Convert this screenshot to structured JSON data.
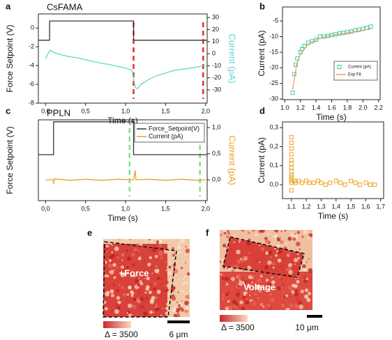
{
  "chart_data": [
    {
      "panel": "a",
      "type": "line",
      "title": "CsFAMA",
      "xlabel": "Time (s)",
      "ylabel": "Force Setpoint (V)",
      "y2label": "Current (pA)",
      "xlim": [
        -0.09,
        2.02
      ],
      "xticks": [
        {
          "value": 0,
          "label": "0,0"
        },
        {
          "value": 0.5,
          "label": "0,5"
        },
        {
          "value": 1,
          "label": "1,0"
        },
        {
          "value": 1.5,
          "label": "1,5"
        },
        {
          "value": 2,
          "label": "2,0"
        }
      ],
      "ylim": [
        -8,
        1.5
      ],
      "yticks": [
        0,
        -2,
        -4,
        -6,
        -8
      ],
      "y2lim": [
        -41,
        33
      ],
      "y2ticks": [
        30,
        20,
        10,
        0,
        -10,
        -20,
        -30
      ],
      "series": [
        {
          "type": "line",
          "color": "#333333",
          "x": [
            -0.09,
            0.05,
            0.05,
            1.1,
            1.1,
            2.02
          ],
          "values": [
            -1.3,
            -1.3,
            0.75,
            0.75,
            -1.3,
            -1.3
          ]
        },
        {
          "type": "line",
          "color": "#5fd6c8",
          "axis": "y2",
          "x": [
            0,
            0.03,
            0.06,
            0.1,
            0.2,
            0.3,
            0.4,
            0.5,
            0.6,
            0.7,
            0.8,
            0.9,
            1.0,
            1.05,
            1.08,
            1.1,
            1.12,
            1.15,
            1.2,
            1.3,
            1.4,
            1.5,
            1.6,
            1.7,
            1.8,
            1.9,
            2.0
          ],
          "values": [
            -4,
            0,
            3,
            1,
            -1,
            -2.5,
            -3.5,
            -5,
            -6.5,
            -8,
            -9,
            -10.5,
            -12,
            -13,
            -14,
            -20,
            -28,
            -29,
            -25,
            -21,
            -18,
            -16,
            -14,
            -13,
            -12,
            -11,
            -10
          ]
        }
      ],
      "vlines": [
        {
          "x": 1.1,
          "color": "#e0302a"
        },
        {
          "x": 1.97,
          "color": "#e0302a"
        }
      ]
    },
    {
      "panel": "b",
      "type": "scatter",
      "xlabel": "Time (s)",
      "ylabel": "Current (pA)",
      "xlim": [
        0.97,
        2.22
      ],
      "xticks": [
        {
          "value": 1,
          "label": "1.0"
        },
        1.2,
        1.4,
        1.6,
        1.8,
        {
          "value": 2,
          "label": "2.0"
        },
        2.2
      ],
      "ylim": [
        -30.2,
        -0.5
      ],
      "yticks": [
        -5,
        -10,
        -15,
        -20,
        -25,
        -30
      ],
      "legend": "lower right",
      "series": [
        {
          "name": "Current (pA)",
          "type": "scatter",
          "color": "#3cc9a0",
          "x": [
            1.1,
            1.12,
            1.14,
            1.16,
            1.2,
            1.22,
            1.25,
            1.3,
            1.35,
            1.4,
            1.45,
            1.5,
            1.55,
            1.6,
            1.65,
            1.7,
            1.75,
            1.8,
            1.85,
            1.9,
            1.95,
            2.0,
            2.05,
            2.1
          ],
          "values": [
            -28,
            -22,
            -19,
            -17,
            -15,
            -14,
            -13,
            -12,
            -11.5,
            -11,
            -10,
            -10,
            -9.8,
            -9.5,
            -9.3,
            -9,
            -8.8,
            -8.6,
            -8.4,
            -8,
            -7.8,
            -7.5,
            -7.2,
            -6.8
          ]
        },
        {
          "name": "Exp Fit",
          "type": "line",
          "color": "#f0a060",
          "x": [
            1.1,
            1.15,
            1.2,
            1.3,
            1.4,
            1.5,
            1.6,
            1.8,
            2.0,
            2.1
          ],
          "values": [
            -27,
            -19,
            -15.5,
            -12.5,
            -11,
            -10.2,
            -9.6,
            -8.8,
            -7.9,
            -7.5
          ]
        }
      ]
    },
    {
      "panel": "c",
      "type": "line",
      "title": "PPLN",
      "xlabel": "Time (s)",
      "ylabel": "Force Setpoint (V)",
      "y2label": "Current (pA)",
      "xlim": [
        -0.09,
        2.02
      ],
      "xticks": [
        {
          "value": 0,
          "label": "0,0"
        },
        {
          "value": 0.5,
          "label": "0,5"
        },
        {
          "value": 1,
          "label": "1,0"
        },
        {
          "value": 1.5,
          "label": "1,5"
        },
        {
          "value": 2,
          "label": "2,0"
        }
      ],
      "ylim": [
        -7,
        5.3
      ],
      "yticks": [],
      "y2lim": [
        -0.4,
        1.15
      ],
      "y2ticks": [
        {
          "value": 1,
          "label": "1,0"
        },
        {
          "value": 0.5,
          "label": "0,5"
        },
        {
          "value": 0,
          "label": "0,0"
        }
      ],
      "legend": "upper right",
      "series": [
        {
          "name": "Force_Setpoint(V)",
          "type": "line",
          "color": "#333333",
          "x": [
            -0.09,
            0.1,
            0.1,
            1.1,
            1.1,
            2.02
          ],
          "values": [
            0,
            0,
            5,
            5,
            0,
            0
          ]
        },
        {
          "name": "Current (pA)",
          "type": "line",
          "color": "#f0a020",
          "axis": "y2",
          "x": [
            0,
            0.1,
            0.1,
            0.11,
            0.3,
            0.5,
            0.7,
            0.9,
            1.1,
            1.12,
            1.13,
            1.3,
            1.5,
            1.7,
            1.9,
            2.0
          ],
          "values": [
            0,
            0,
            -0.08,
            0.02,
            -0.01,
            0.01,
            -0.01,
            0.01,
            0,
            0.18,
            0,
            0.01,
            -0.01,
            0.01,
            -0.01,
            0
          ]
        }
      ],
      "vlines": [
        {
          "x": 1.05,
          "color": "#7fe08a"
        },
        {
          "x": 1.93,
          "color": "#7fe08a"
        }
      ]
    },
    {
      "panel": "d",
      "type": "scatter",
      "xlabel": "Time (s)",
      "ylabel": "Current (pA)",
      "xlim": [
        1.04,
        1.72
      ],
      "xticks": [
        {
          "value": 1.1,
          "label": "1,1"
        },
        {
          "value": 1.2,
          "label": "1,2"
        },
        {
          "value": 1.3,
          "label": "1,3"
        },
        {
          "value": 1.4,
          "label": "1,4"
        },
        {
          "value": 1.5,
          "label": "1,5"
        },
        {
          "value": 1.6,
          "label": "1,6"
        },
        {
          "value": 1.7,
          "label": "1,7"
        }
      ],
      "ylim": [
        -0.073,
        0.33
      ],
      "yticks": [
        {
          "value": 0,
          "label": "0,0"
        },
        {
          "value": 0.1,
          "label": "0,1"
        },
        {
          "value": 0.2,
          "label": "0,2"
        },
        {
          "value": 0.3,
          "label": "0,3"
        }
      ],
      "series": [
        {
          "type": "scatter",
          "color": "#f0a020",
          "x": [
            1.1,
            1.1,
            1.1,
            1.1,
            1.1,
            1.1,
            1.1,
            1.1,
            1.1,
            1.1,
            1.1,
            1.1,
            1.1,
            1.1,
            1.12,
            1.13,
            1.15,
            1.17,
            1.2,
            1.22,
            1.25,
            1.28,
            1.3,
            1.33,
            1.36,
            1.4,
            1.43,
            1.46,
            1.5,
            1.53,
            1.56,
            1.6,
            1.63,
            1.66
          ],
          "values": [
            0.25,
            0.22,
            0.19,
            0.16,
            0.13,
            0.11,
            0.09,
            0.07,
            0.05,
            0.04,
            0.03,
            0.02,
            0.01,
            -0.03,
            0.02,
            0.01,
            0.02,
            0.01,
            0.02,
            0.01,
            0.01,
            0.02,
            0.01,
            0,
            0.01,
            0.02,
            0.01,
            0,
            0.02,
            0.01,
            0,
            0.01,
            0,
            0
          ]
        }
      ]
    }
  ],
  "images": [
    {
      "panel": "e",
      "label": "+Force",
      "colorbar_label": "Δ = 3500",
      "scalebar": "6 μm"
    },
    {
      "panel": "f",
      "label": "Voltage",
      "colorbar_label": "Δ = 3500",
      "scalebar": "10 μm"
    }
  ]
}
